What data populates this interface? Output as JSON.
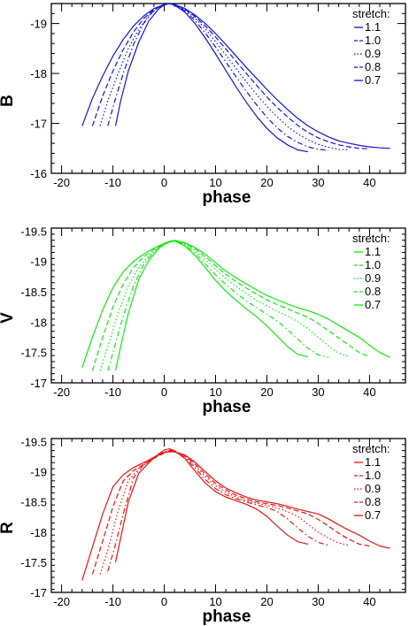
{
  "chart_data": [
    {
      "type": "line",
      "xlabel": "phase",
      "ylabel": "B",
      "xlim": [
        -22,
        47
      ],
      "ylim": [
        -16,
        -19.4
      ],
      "y_inverted": true,
      "xticks": [
        -20,
        -10,
        0,
        10,
        20,
        30,
        40
      ],
      "yticks": [
        -19,
        -18,
        -17,
        -16
      ],
      "legend_title": "stretch:",
      "legend_position": "top-right",
      "color": "#1414d2",
      "series": [
        {
          "name": "1.1",
          "style": "solid",
          "x": [
            -16,
            -14,
            -12,
            -10,
            -8,
            -6,
            -4,
            -2,
            0,
            1,
            2,
            4,
            6,
            8,
            10,
            12,
            14,
            16,
            18,
            20,
            22,
            24,
            26,
            28,
            30,
            32,
            34,
            36,
            38,
            40,
            42,
            44
          ],
          "y": [
            -16.95,
            -17.5,
            -17.95,
            -18.35,
            -18.68,
            -18.95,
            -19.15,
            -19.3,
            -19.38,
            -19.4,
            -19.38,
            -19.3,
            -19.17,
            -19.0,
            -18.8,
            -18.58,
            -18.35,
            -18.12,
            -17.9,
            -17.68,
            -17.47,
            -17.28,
            -17.1,
            -16.95,
            -16.83,
            -16.73,
            -16.65,
            -16.6,
            -16.56,
            -16.53,
            -16.51,
            -16.5
          ]
        },
        {
          "name": "1.0",
          "style": "dashed",
          "x": [
            -14,
            -12,
            -10,
            -8,
            -6,
            -4,
            -2,
            0,
            1,
            2,
            4,
            6,
            8,
            10,
            12,
            14,
            16,
            18,
            20,
            22,
            24,
            26,
            28,
            30,
            32,
            34,
            36,
            38,
            40
          ],
          "y": [
            -16.95,
            -17.55,
            -18.05,
            -18.48,
            -18.83,
            -19.1,
            -19.28,
            -19.38,
            -19.4,
            -19.38,
            -19.29,
            -19.14,
            -18.95,
            -18.73,
            -18.49,
            -18.24,
            -18.0,
            -17.76,
            -17.53,
            -17.32,
            -17.13,
            -16.96,
            -16.82,
            -16.71,
            -16.63,
            -16.57,
            -16.53,
            -16.5,
            -16.49
          ]
        },
        {
          "name": "0.9",
          "style": "dotted",
          "x": [
            -12.5,
            -11,
            -9,
            -7,
            -5,
            -3,
            -1,
            0,
            1,
            2,
            4,
            6,
            8,
            10,
            12,
            14,
            16,
            18,
            20,
            22,
            24,
            26,
            28,
            30,
            32,
            34,
            36
          ],
          "y": [
            -16.95,
            -17.45,
            -18.0,
            -18.5,
            -18.88,
            -19.16,
            -19.33,
            -19.38,
            -19.4,
            -19.38,
            -19.28,
            -19.11,
            -18.89,
            -18.64,
            -18.37,
            -18.1,
            -17.83,
            -17.58,
            -17.34,
            -17.13,
            -16.94,
            -16.79,
            -16.67,
            -16.58,
            -16.52,
            -16.48,
            -16.47
          ]
        },
        {
          "name": "0.8",
          "style": "dash-dot",
          "x": [
            -11,
            -9.5,
            -8,
            -6,
            -4,
            -2,
            0,
            1,
            2,
            4,
            6,
            8,
            10,
            12,
            14,
            16,
            18,
            20,
            22,
            24,
            26,
            28,
            30,
            32
          ],
          "y": [
            -16.95,
            -17.5,
            -18.0,
            -18.58,
            -19.0,
            -19.27,
            -19.38,
            -19.4,
            -19.37,
            -19.26,
            -19.06,
            -18.81,
            -18.53,
            -18.23,
            -17.93,
            -17.64,
            -17.37,
            -17.12,
            -16.91,
            -16.74,
            -16.62,
            -16.53,
            -16.48,
            -16.46
          ]
        },
        {
          "name": "0.7",
          "style": "solid",
          "x": [
            -9.5,
            -8.5,
            -7,
            -5,
            -3,
            -1,
            0,
            1,
            2,
            4,
            6,
            8,
            10,
            12,
            14,
            16,
            18,
            20,
            22,
            24,
            26,
            28
          ],
          "y": [
            -16.95,
            -17.45,
            -18.05,
            -18.62,
            -19.05,
            -19.3,
            -19.37,
            -19.4,
            -19.37,
            -19.23,
            -19.0,
            -18.71,
            -18.39,
            -18.06,
            -17.73,
            -17.42,
            -17.14,
            -16.9,
            -16.71,
            -16.57,
            -16.47,
            -16.43
          ]
        }
      ]
    },
    {
      "type": "line",
      "xlabel": "phase",
      "ylabel": "V",
      "xlim": [
        -22,
        47
      ],
      "ylim": [
        -17,
        -19.55
      ],
      "y_inverted": true,
      "xticks": [
        -20,
        -10,
        0,
        10,
        20,
        30,
        40
      ],
      "yticks": [
        -19.5,
        -19,
        -18.5,
        -18,
        -17.5,
        -17
      ],
      "legend_title": "stretch:",
      "legend_position": "top-right",
      "color": "#14e614",
      "series": [
        {
          "name": "1.1",
          "style": "solid",
          "x": [
            -16,
            -14,
            -12,
            -10,
            -8,
            -6,
            -4,
            -2,
            0,
            1,
            2,
            4,
            6,
            8,
            10,
            12,
            14,
            16,
            18,
            20,
            22,
            24,
            26,
            28,
            30,
            32,
            34,
            36,
            38,
            40,
            42,
            44
          ],
          "y": [
            -17.25,
            -17.75,
            -18.2,
            -18.57,
            -18.83,
            -19.0,
            -19.12,
            -19.22,
            -19.3,
            -19.33,
            -19.35,
            -19.31,
            -19.23,
            -19.12,
            -18.98,
            -18.84,
            -18.73,
            -18.63,
            -18.53,
            -18.44,
            -18.37,
            -18.3,
            -18.24,
            -18.19,
            -18.13,
            -18.05,
            -17.95,
            -17.85,
            -17.75,
            -17.62,
            -17.5,
            -17.42
          ]
        },
        {
          "name": "1.0",
          "style": "dashed",
          "x": [
            -14,
            -12,
            -10,
            -8,
            -6,
            -4,
            -2,
            0,
            1,
            2,
            4,
            6,
            8,
            10,
            12,
            14,
            16,
            18,
            20,
            22,
            24,
            26,
            28,
            30,
            32,
            34,
            36,
            38,
            40
          ],
          "y": [
            -17.2,
            -17.75,
            -18.25,
            -18.63,
            -18.9,
            -19.08,
            -19.2,
            -19.29,
            -19.32,
            -19.34,
            -19.3,
            -19.21,
            -19.08,
            -18.93,
            -18.79,
            -18.67,
            -18.56,
            -18.46,
            -18.37,
            -18.29,
            -18.22,
            -18.15,
            -18.08,
            -17.98,
            -17.86,
            -17.74,
            -17.62,
            -17.5,
            -17.43
          ]
        },
        {
          "name": "0.9",
          "style": "dotted",
          "x": [
            -12.5,
            -11,
            -9,
            -7,
            -5,
            -3,
            -1,
            0,
            1,
            2,
            4,
            6,
            8,
            10,
            12,
            14,
            16,
            18,
            20,
            22,
            24,
            26,
            28,
            30,
            32,
            34,
            36
          ],
          "y": [
            -17.2,
            -17.6,
            -18.15,
            -18.6,
            -18.9,
            -19.1,
            -19.22,
            -19.28,
            -19.32,
            -19.34,
            -19.29,
            -19.18,
            -19.03,
            -18.87,
            -18.72,
            -18.59,
            -18.47,
            -18.36,
            -18.27,
            -18.18,
            -18.1,
            -18.01,
            -17.89,
            -17.75,
            -17.61,
            -17.49,
            -17.43
          ]
        },
        {
          "name": "0.8",
          "style": "dash-dot",
          "x": [
            -11,
            -9.5,
            -8,
            -6,
            -4,
            -2,
            0,
            1,
            2,
            4,
            6,
            8,
            10,
            12,
            14,
            16,
            18,
            20,
            22,
            24,
            26,
            28,
            30,
            32
          ],
          "y": [
            -17.2,
            -17.65,
            -18.1,
            -18.6,
            -18.95,
            -19.17,
            -19.28,
            -19.32,
            -19.34,
            -19.28,
            -19.14,
            -18.96,
            -18.78,
            -18.62,
            -18.48,
            -18.35,
            -18.24,
            -18.13,
            -18.02,
            -17.88,
            -17.72,
            -17.57,
            -17.46,
            -17.42
          ]
        },
        {
          "name": "0.7",
          "style": "solid",
          "x": [
            -9.5,
            -8.5,
            -7,
            -5,
            -3,
            -1,
            0,
            1,
            2,
            4,
            6,
            8,
            10,
            12,
            14,
            16,
            18,
            20,
            22,
            24,
            26,
            28
          ],
          "y": [
            -17.2,
            -17.6,
            -18.15,
            -18.7,
            -19.02,
            -19.22,
            -19.28,
            -19.32,
            -19.34,
            -19.26,
            -19.1,
            -18.9,
            -18.69,
            -18.51,
            -18.36,
            -18.22,
            -18.09,
            -17.94,
            -17.77,
            -17.6,
            -17.47,
            -17.43
          ]
        }
      ]
    },
    {
      "type": "line",
      "xlabel": "phase",
      "ylabel": "R",
      "xlim": [
        -22,
        47
      ],
      "ylim": [
        -17,
        -19.55
      ],
      "y_inverted": true,
      "xticks": [
        -20,
        -10,
        0,
        10,
        20,
        30,
        40
      ],
      "yticks": [
        -19.5,
        -19,
        -18.5,
        -18,
        -17.5,
        -17
      ],
      "legend_title": "stretch:",
      "legend_position": "top-right",
      "color": "#e61414",
      "series": [
        {
          "name": "1.1",
          "style": "solid",
          "x": [
            -16,
            -14,
            -12,
            -10,
            -8,
            -6,
            -4,
            -2,
            0,
            1,
            2,
            4,
            6,
            8,
            10,
            12,
            14,
            16,
            18,
            20,
            22,
            24,
            26,
            28,
            30,
            32,
            34,
            36,
            38,
            40,
            42,
            44
          ],
          "y": [
            -17.2,
            -17.75,
            -18.3,
            -18.75,
            -18.95,
            -19.07,
            -19.15,
            -19.24,
            -19.32,
            -19.33,
            -19.33,
            -19.28,
            -19.16,
            -19.0,
            -18.85,
            -18.73,
            -18.65,
            -18.58,
            -18.53,
            -18.5,
            -18.47,
            -18.43,
            -18.38,
            -18.34,
            -18.3,
            -18.22,
            -18.12,
            -18.03,
            -17.95,
            -17.85,
            -17.77,
            -17.73
          ]
        },
        {
          "name": "1.0",
          "style": "dashed",
          "x": [
            -14,
            -12,
            -10,
            -8,
            -6,
            -4,
            -2,
            0,
            1,
            2,
            4,
            6,
            8,
            10,
            12,
            14,
            16,
            18,
            20,
            22,
            24,
            26,
            28,
            30,
            32,
            34,
            36,
            38,
            40
          ],
          "y": [
            -17.3,
            -17.85,
            -18.42,
            -18.85,
            -19.02,
            -19.12,
            -19.22,
            -19.31,
            -19.34,
            -19.33,
            -19.27,
            -19.13,
            -18.96,
            -18.81,
            -18.7,
            -18.61,
            -18.55,
            -18.5,
            -18.47,
            -18.44,
            -18.4,
            -18.35,
            -18.3,
            -18.21,
            -18.1,
            -17.98,
            -17.88,
            -17.8,
            -17.77
          ]
        },
        {
          "name": "0.9",
          "style": "dotted",
          "x": [
            -12.5,
            -11,
            -9,
            -7,
            -5,
            -3,
            -1,
            0,
            1,
            2,
            4,
            6,
            8,
            10,
            12,
            14,
            16,
            18,
            20,
            22,
            24,
            26,
            28,
            30,
            32,
            34,
            36
          ],
          "y": [
            -17.3,
            -17.7,
            -18.35,
            -18.85,
            -19.05,
            -19.17,
            -19.28,
            -19.32,
            -19.35,
            -19.33,
            -19.26,
            -19.1,
            -18.92,
            -18.77,
            -18.66,
            -18.58,
            -18.52,
            -18.48,
            -18.44,
            -18.4,
            -18.34,
            -18.26,
            -18.13,
            -18.0,
            -17.9,
            -17.82,
            -17.78
          ]
        },
        {
          "name": "0.8",
          "style": "dash-dot",
          "x": [
            -11,
            -9.5,
            -8,
            -6,
            -4,
            -2,
            0,
            1,
            2,
            4,
            6,
            8,
            10,
            12,
            14,
            16,
            18,
            20,
            22,
            24,
            26,
            28,
            30,
            32
          ],
          "y": [
            -17.35,
            -17.8,
            -18.3,
            -18.9,
            -19.12,
            -19.25,
            -19.33,
            -19.36,
            -19.34,
            -19.24,
            -19.06,
            -18.87,
            -18.72,
            -18.62,
            -18.55,
            -18.5,
            -18.45,
            -18.41,
            -18.34,
            -18.22,
            -18.07,
            -17.93,
            -17.83,
            -17.78
          ]
        },
        {
          "name": "0.7",
          "style": "solid",
          "x": [
            -9.5,
            -8.5,
            -7,
            -5,
            -3,
            -1,
            0,
            1,
            2,
            4,
            6,
            8,
            10,
            12,
            14,
            16,
            18,
            20,
            22,
            24,
            26,
            28
          ],
          "y": [
            -17.5,
            -17.9,
            -18.5,
            -18.97,
            -19.15,
            -19.3,
            -19.36,
            -19.38,
            -19.35,
            -19.22,
            -19.01,
            -18.81,
            -18.67,
            -18.58,
            -18.52,
            -18.46,
            -18.38,
            -18.26,
            -18.1,
            -17.95,
            -17.84,
            -17.8
          ]
        }
      ]
    }
  ]
}
